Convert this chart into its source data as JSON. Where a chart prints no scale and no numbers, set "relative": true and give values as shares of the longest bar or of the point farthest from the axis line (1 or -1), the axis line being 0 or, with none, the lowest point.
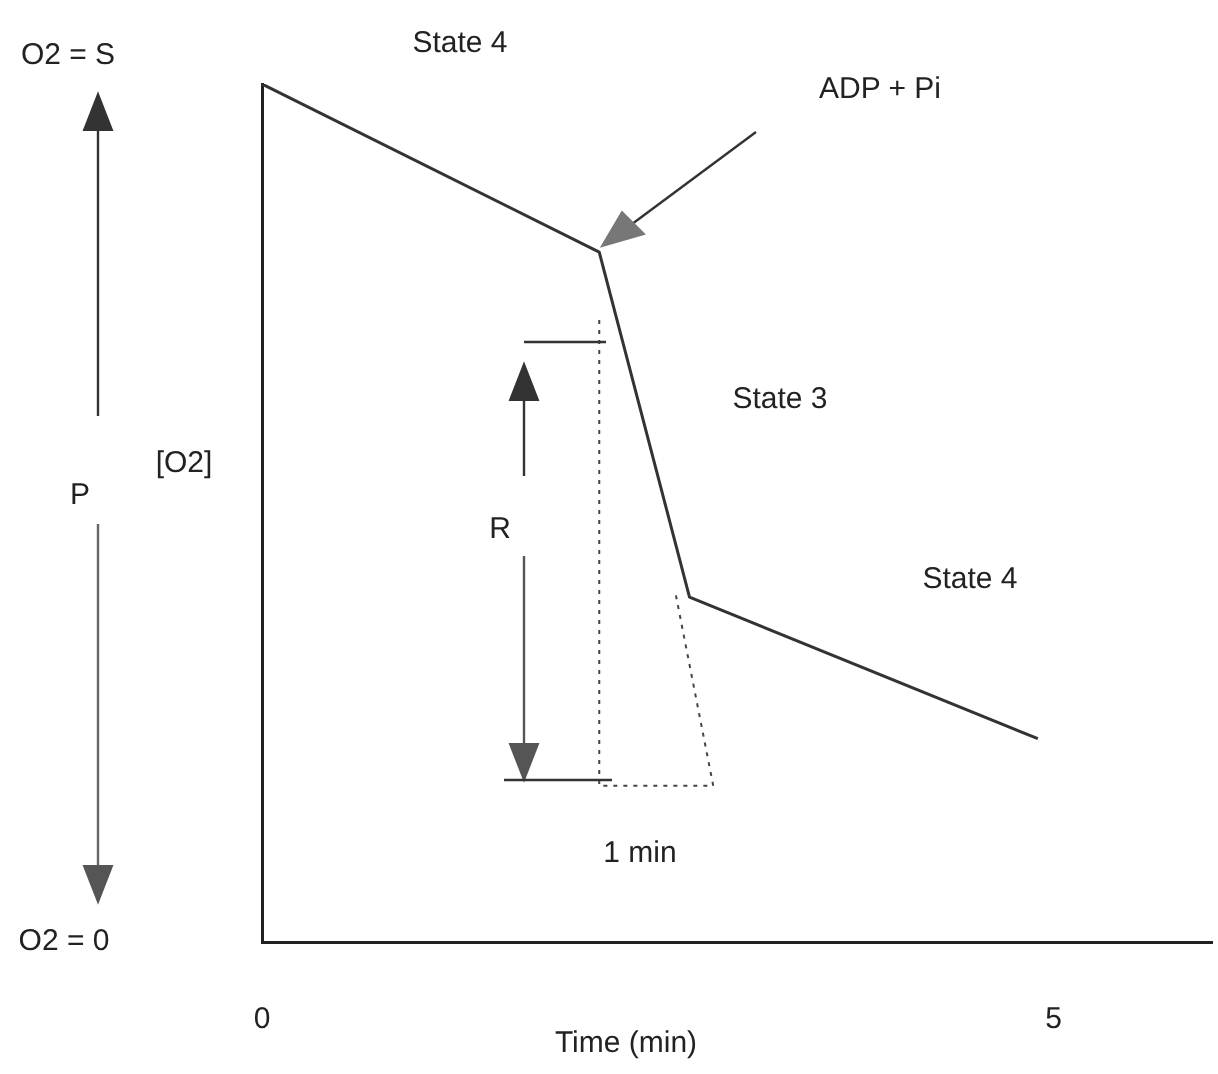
{
  "chart_data": {
    "type": "line",
    "xlabel": "Time (min)",
    "ylabel": "[O2]",
    "x": [
      0,
      2.13,
      2.7,
      4.9
    ],
    "series": [
      {
        "color": "#333333",
        "values": [
          1,
          0.804,
          0.402,
          0.237
        ]
      },
      {
        "color": "#444444",
        "line_style": "dotted",
        "x": [
          2.13,
          2.13,
          2.85,
          2.61
        ],
        "values": [
          0.725,
          0.182,
          0.182,
          0.408
        ]
      }
    ],
    "relative": true,
    "xlim": [
      0,
      6
    ],
    "xticks": [
      0,
      5
    ],
    "annotations": [
      "O2 = S",
      "State 4",
      "ADP + Pi",
      "State 3",
      "State 4",
      "P",
      "R",
      "1 min",
      "O2 = 0"
    ],
    "marker": "none",
    "legend": false,
    "grid": false
  }
}
